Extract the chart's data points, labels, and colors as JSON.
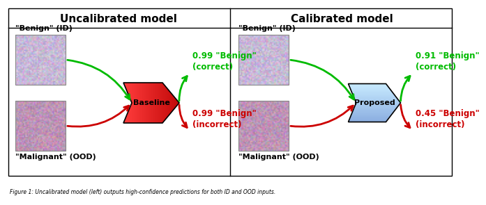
{
  "title_left": "Uncalibrated model",
  "title_right": "Calibrated model",
  "bg_color": "#ffffff",
  "left_label_top": "\"Benign\" (ID)",
  "left_label_bottom": "\"Malignant\" (OOD)",
  "right_label_top": "\"Benign\" (ID)",
  "right_label_bottom": "\"Malignant\" (OOD)",
  "left_output_green": "0.99 \"Benign\"\n(correct)",
  "left_output_red": "0.99 \"Benign\"\n(incorrect)",
  "right_output_green": "0.91 \"Benign\"\n(correct)",
  "right_output_red": "0.45 \"Benign\"\n(incorrect)",
  "baseline_label": "Baseline",
  "proposed_label": "Proposed",
  "baseline_color_left": "#ff2222",
  "baseline_color_right": "#cc0000",
  "proposed_color_light": "#a8dff8",
  "proposed_color_dark": "#4ab0e0",
  "arrow_green": "#00bb00",
  "arrow_red": "#cc0000",
  "title_fontsize": 11,
  "label_fontsize": 8,
  "output_fontsize": 8.5
}
